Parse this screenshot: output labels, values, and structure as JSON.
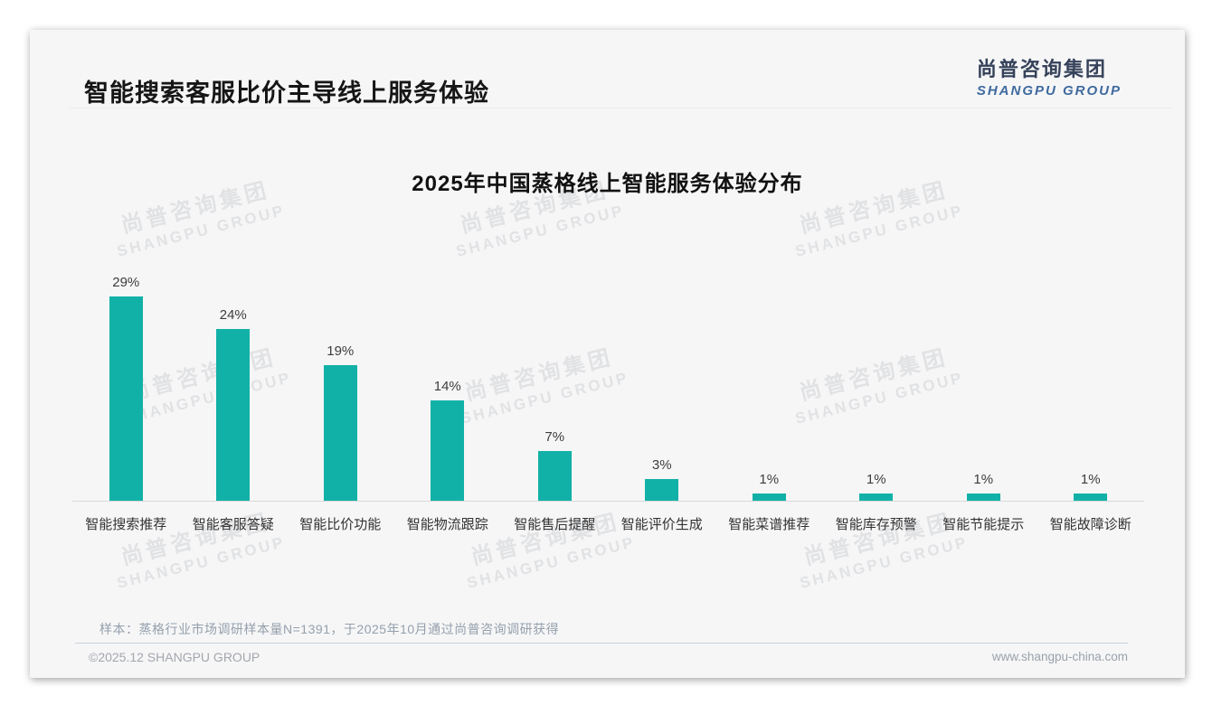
{
  "page": {
    "title": "智能搜索客服比价主导线上服务体验",
    "logo": {
      "cn": "尚普咨询集团",
      "en": "SHANGPU GROUP"
    },
    "watermark": {
      "line1": "尚普咨询集团",
      "line2": "SHANGPU GROUP"
    },
    "footer": {
      "note": "样本：蒸格行业市场调研样本量N=1391，于2025年10月通过尚普咨询调研获得",
      "copyright": "©2025.12 SHANGPU GROUP",
      "website": "www.shangpu-china.com"
    }
  },
  "colors": {
    "bar": "#12b1a7",
    "logo_cn": "#36425a",
    "logo_en": "#3f6a9e",
    "card_bg": "#f6f6f7"
  },
  "chart_data": {
    "type": "bar",
    "title": "2025年中国蒸格线上智能服务体验分布",
    "categories": [
      "智能搜索推荐",
      "智能客服答疑",
      "智能比价功能",
      "智能物流跟踪",
      "智能售后提醒",
      "智能评价生成",
      "智能菜谱推荐",
      "智能库存预警",
      "智能节能提示",
      "智能故障诊断"
    ],
    "values": [
      29,
      24,
      19,
      14,
      7,
      3,
      1,
      1,
      1,
      1
    ],
    "unit": "%",
    "xlabel": "",
    "ylabel": "",
    "ylim": [
      0,
      31
    ],
    "grid": false,
    "legend": false,
    "value_labels": true,
    "bar_color": "#12b1a7"
  }
}
